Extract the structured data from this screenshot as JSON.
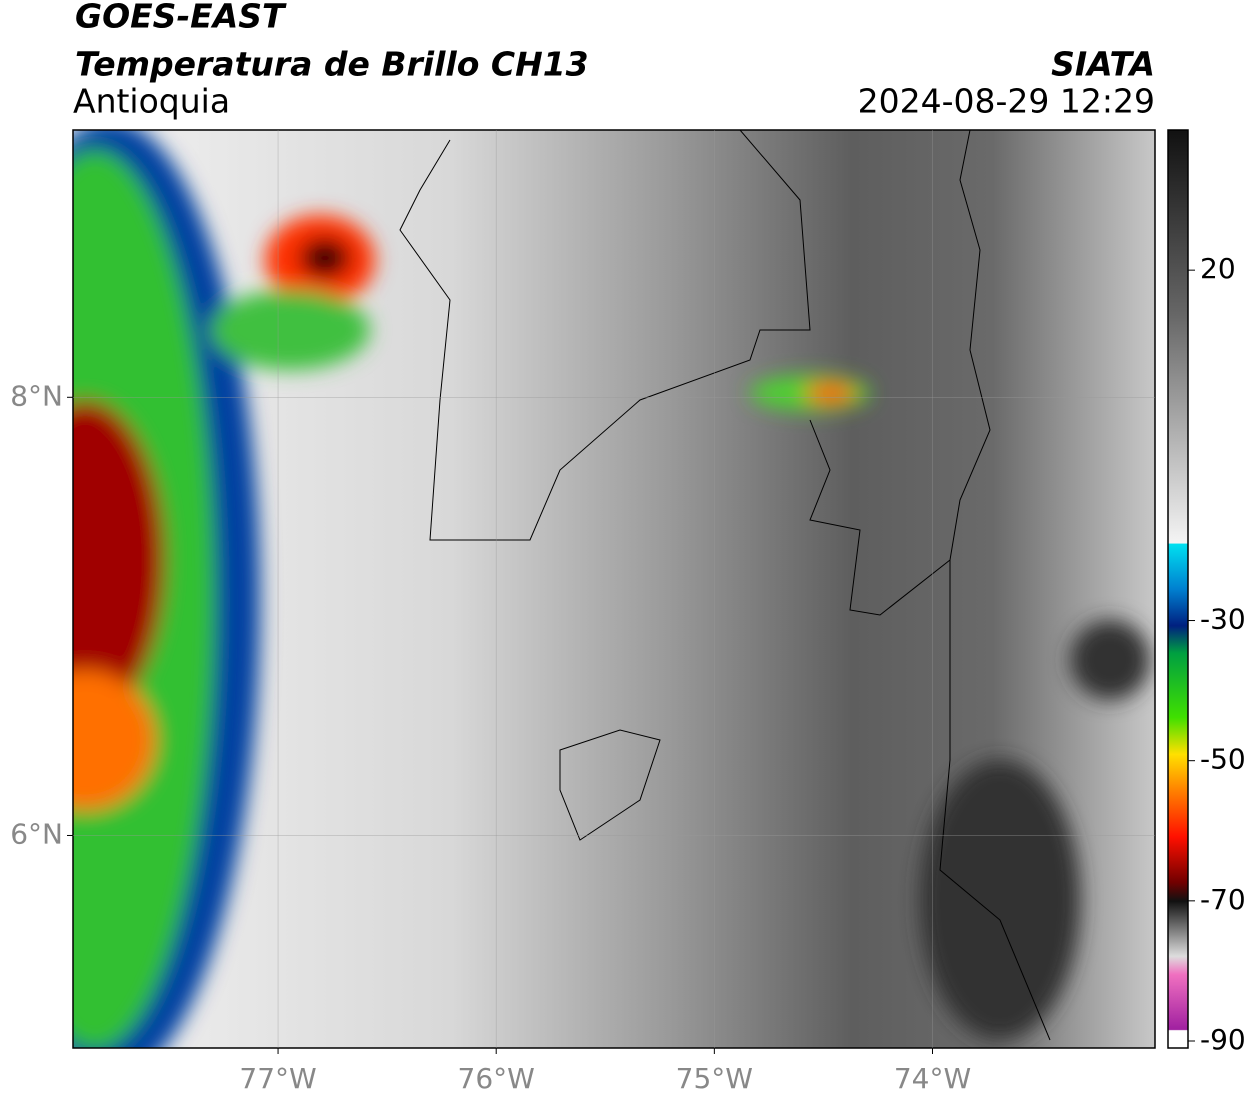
{
  "header": {
    "title": "GOES-EAST",
    "subtitle": "Temperatura de Brillo CH13",
    "region": "Antioquia",
    "source": "SIATA",
    "datetime": "2024-08-29 12:29"
  },
  "map": {
    "xlim": [
      -77.94,
      -72.98
    ],
    "ylim": [
      5.03,
      9.22
    ],
    "xticks": [
      {
        "value": -77,
        "label": "77°W"
      },
      {
        "value": -76,
        "label": "76°W"
      },
      {
        "value": -75,
        "label": "75°W"
      },
      {
        "value": -74,
        "label": "74°W"
      }
    ],
    "yticks": [
      {
        "value": 8,
        "label": "8°N"
      },
      {
        "value": 6,
        "label": "6°N"
      }
    ],
    "grid": true
  },
  "colorbar": {
    "ylim": [
      -91,
      40
    ],
    "yticks": [
      20,
      -30,
      -50,
      -70,
      -90
    ]
  }
}
